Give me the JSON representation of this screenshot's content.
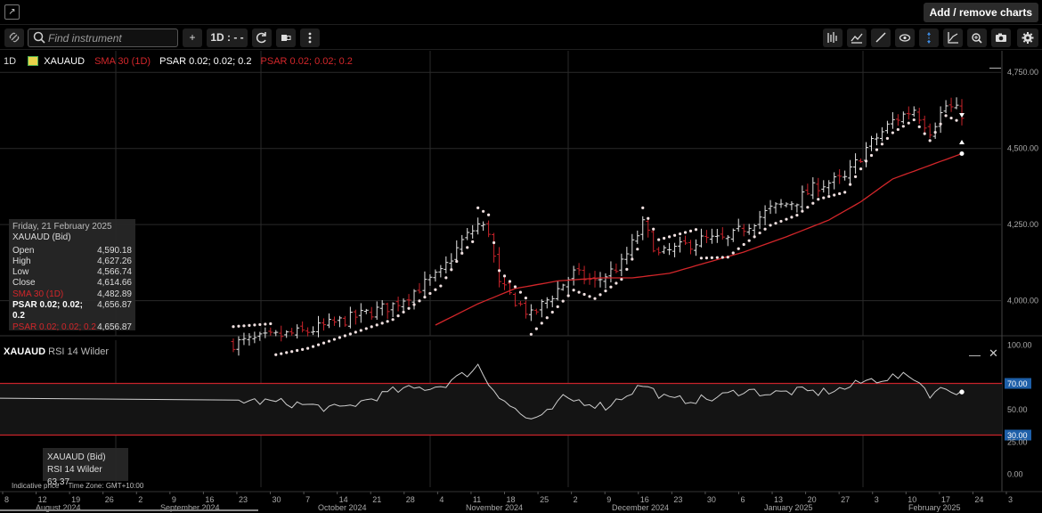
{
  "header": {
    "popout_icon": "popout-icon",
    "add_remove_label": "Add / remove charts"
  },
  "toolbar": {
    "search_placeholder": "Find instrument",
    "add_label": "+",
    "interval_label": "1D : - -",
    "tools": [
      "link-icon",
      "refresh-icon",
      "chart-type-icon",
      "more-vertical-icon",
      "indicators-icon",
      "studies-icon",
      "draw-line-icon",
      "eye-icon",
      "crosshair-icon",
      "axis-icon",
      "zoom-icon",
      "camera-icon",
      "settings-icon"
    ]
  },
  "legend": {
    "interval": "1D",
    "symbol": "XAUAUD",
    "sma": "SMA 30 (1D)",
    "psar1": "PSAR 0.02; 0.02; 0.2",
    "psar2": "PSAR 0.02; 0.02; 0.2",
    "colors": {
      "sma": "#d2262a",
      "psar1": "#ffffff",
      "psar2": "#d2262a",
      "up": "#e6e6e6",
      "down": "#c8232a"
    }
  },
  "tooltip": {
    "date": "Friday, 21 February 2025",
    "title": "XAUAUD (Bid)",
    "rows": [
      {
        "label": "Open",
        "value": "4,590.18"
      },
      {
        "label": "High",
        "value": "4,627.26"
      },
      {
        "label": "Low",
        "value": "4,566.74"
      },
      {
        "label": "Close",
        "value": "4,614.66"
      },
      {
        "label": "SMA 30 (1D)",
        "value": "4,482.89"
      },
      {
        "label": "PSAR 0.02; 0.02; 0.2",
        "value": "4,656.87"
      },
      {
        "label": "PSAR 0.02; 0.02; 0.2",
        "value": "4,656.87"
      }
    ]
  },
  "rsi": {
    "label": "XAUAUD",
    "indicator": "RSI 14 Wilder",
    "tip_title": "XAUAUD (Bid)",
    "tip_value": "RSI 14 Wilder 63.37",
    "levels": [
      "100.00",
      "70.00",
      "50.00",
      "30.00",
      "25.00",
      "0.00"
    ]
  },
  "footer": {
    "indicative": "Indicative price",
    "timezone": "Time Zone: GMT+10:00"
  },
  "chart_data": {
    "type": "ohlc",
    "price_axis_labels": [
      "4,750.00",
      "4,500.00",
      "4,250.00",
      "4,000.00"
    ],
    "price_axis_values": [
      4750,
      4500,
      4250,
      4000
    ],
    "ylim": [
      3885,
      4812
    ],
    "day_ticks": [
      "8",
      "12",
      "19",
      "26",
      "2",
      "9",
      "16",
      "23",
      "30",
      "7",
      "14",
      "21",
      "28",
      "4",
      "11",
      "18",
      "25",
      "2",
      "9",
      "16",
      "23",
      "30",
      "6",
      "13",
      "20",
      "27",
      "3",
      "10",
      "17",
      "24",
      "3"
    ],
    "month_labels": [
      "August 2024",
      "September 2024",
      "October 2024",
      "November 2024",
      "December 2024",
      "January 2025",
      "February 2025"
    ],
    "price_anchors": [
      [
        0,
        3860
      ],
      [
        14,
        3900
      ],
      [
        30,
        3985
      ],
      [
        39,
        4090
      ],
      [
        43,
        4195
      ],
      [
        46,
        4250
      ],
      [
        48,
        4230
      ],
      [
        50,
        4050
      ],
      [
        54,
        3985
      ],
      [
        56,
        3950
      ],
      [
        60,
        4020
      ],
      [
        64,
        4090
      ],
      [
        68,
        4060
      ],
      [
        73,
        4120
      ],
      [
        77,
        4250
      ],
      [
        80,
        4150
      ],
      [
        88,
        4200
      ],
      [
        93,
        4200
      ],
      [
        96,
        4240
      ],
      [
        101,
        4300
      ],
      [
        106,
        4330
      ],
      [
        110,
        4380
      ],
      [
        115,
        4400
      ],
      [
        119,
        4500
      ],
      [
        124,
        4590
      ],
      [
        128,
        4630
      ],
      [
        131,
        4560
      ],
      [
        134,
        4640
      ],
      [
        137,
        4615
      ]
    ],
    "sma_anchors": [
      [
        38,
        3920
      ],
      [
        46,
        3990
      ],
      [
        53,
        4040
      ],
      [
        61,
        4065
      ],
      [
        69,
        4075
      ],
      [
        75,
        4075
      ],
      [
        82,
        4090
      ],
      [
        88,
        4120
      ],
      [
        96,
        4160
      ],
      [
        104,
        4210
      ],
      [
        112,
        4265
      ],
      [
        118,
        4325
      ],
      [
        124,
        4400
      ],
      [
        137,
        4483
      ]
    ],
    "rsi_anchors": [
      [
        0,
        57
      ],
      [
        10,
        55
      ],
      [
        20,
        50
      ],
      [
        30,
        64
      ],
      [
        39,
        68
      ],
      [
        44,
        78
      ],
      [
        46,
        84
      ],
      [
        48,
        70
      ],
      [
        52,
        53
      ],
      [
        55,
        43
      ],
      [
        58,
        43
      ],
      [
        62,
        58
      ],
      [
        66,
        56
      ],
      [
        70,
        52
      ],
      [
        77,
        69
      ],
      [
        82,
        57
      ],
      [
        90,
        58
      ],
      [
        96,
        65
      ],
      [
        101,
        62
      ],
      [
        106,
        64
      ],
      [
        110,
        63
      ],
      [
        115,
        66
      ],
      [
        119,
        72
      ],
      [
        124,
        75
      ],
      [
        128,
        75
      ],
      [
        131,
        62
      ],
      [
        134,
        66
      ],
      [
        137,
        63.37
      ]
    ],
    "rsi_levels": [
      30,
      70
    ]
  }
}
